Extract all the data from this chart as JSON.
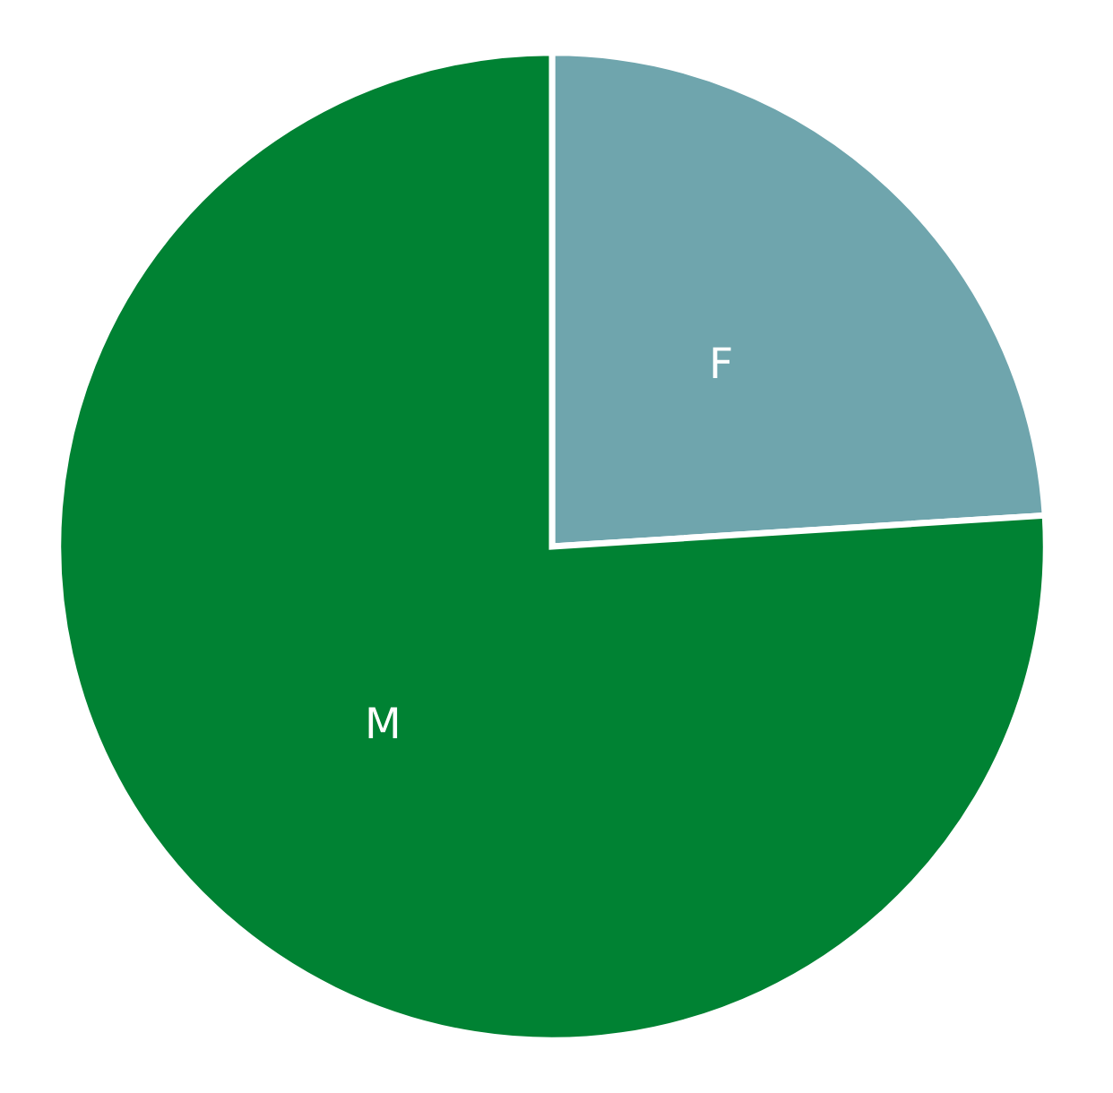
{
  "chart_data": {
    "type": "pie",
    "categories": [
      "F",
      "M"
    ],
    "values": [
      24,
      76
    ],
    "colors": [
      "#6fa5ad",
      "#008233"
    ],
    "legend": false
  }
}
